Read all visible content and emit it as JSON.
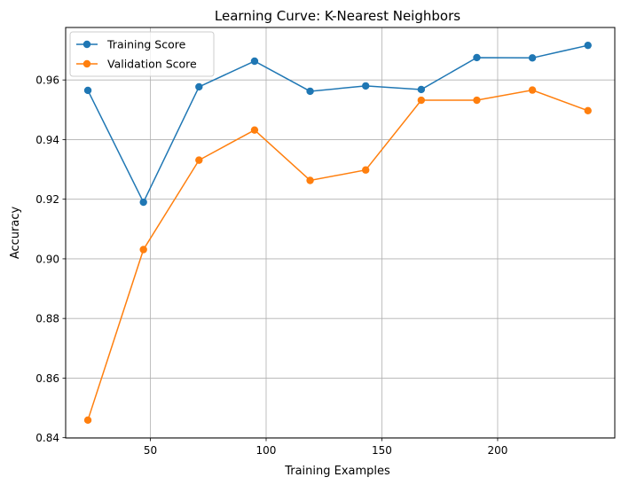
{
  "chart_data": {
    "type": "line",
    "title": "Learning Curve: K-Nearest Neighbors",
    "xlabel": "Training Examples",
    "ylabel": "Accuracy",
    "xlim": [
      13.4,
      250.6
    ],
    "ylim": [
      0.8399,
      0.9776
    ],
    "grid": true,
    "legend_position": "top-left",
    "x_ticks": [
      50,
      100,
      150,
      200
    ],
    "y_ticks": [
      0.84,
      0.86,
      0.88,
      0.9,
      0.92,
      0.94,
      0.96
    ],
    "y_tick_labels": [
      "0.84",
      "0.86",
      "0.88",
      "0.90",
      "0.92",
      "0.94",
      "0.96"
    ],
    "x": [
      23,
      47,
      71,
      95,
      119,
      143,
      167,
      191,
      215,
      239
    ],
    "series": [
      {
        "name": "Training Score",
        "color": "#1f77b4",
        "values": [
          0.9565,
          0.919,
          0.9577,
          0.9663,
          0.9562,
          0.958,
          0.9568,
          0.9675,
          0.9674,
          0.9716
        ]
      },
      {
        "name": "Validation Score",
        "color": "#ff7f0e",
        "values": [
          0.8459,
          0.9031,
          0.9331,
          0.9432,
          0.9263,
          0.9298,
          0.9532,
          0.9532,
          0.9566,
          0.9497
        ]
      }
    ]
  }
}
